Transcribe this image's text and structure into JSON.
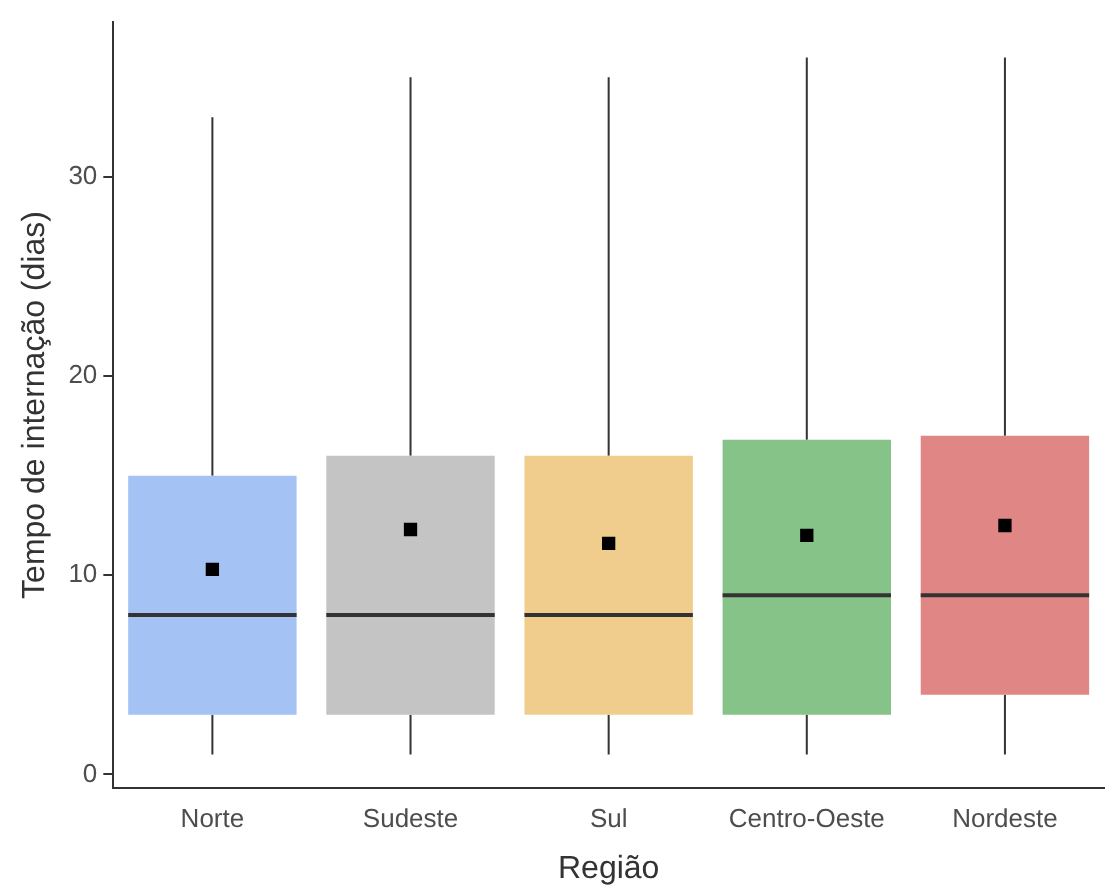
{
  "chart_data": {
    "type": "box",
    "xlabel": "Região",
    "ylabel": "Tempo de internação (dias)",
    "categories": [
      "Norte",
      "Sudeste",
      "Sul",
      "Centro-Oeste",
      "Nordeste"
    ],
    "colors": [
      "#a4c2f4",
      "#c4c4c4",
      "#f1cd8d",
      "#86c388",
      "#e08684"
    ],
    "boxes": [
      {
        "low": 1,
        "q1": 3,
        "median": 8,
        "q3": 15,
        "high": 33,
        "mean": 10.3
      },
      {
        "low": 1,
        "q1": 3,
        "median": 8,
        "q3": 16,
        "high": 35,
        "mean": 12.3
      },
      {
        "low": 1,
        "q1": 3,
        "median": 8,
        "q3": 16,
        "high": 35,
        "mean": 11.6
      },
      {
        "low": 1,
        "q1": 3,
        "median": 9,
        "q3": 16.8,
        "high": 36,
        "mean": 12
      },
      {
        "low": 1,
        "q1": 4,
        "median": 9,
        "q3": 17,
        "high": 36,
        "mean": 12.5
      }
    ],
    "ylim": [
      -0.7,
      37.8
    ],
    "yticks": [
      0,
      10,
      20,
      30
    ],
    "grid": false,
    "legend": false,
    "marker": "square"
  }
}
